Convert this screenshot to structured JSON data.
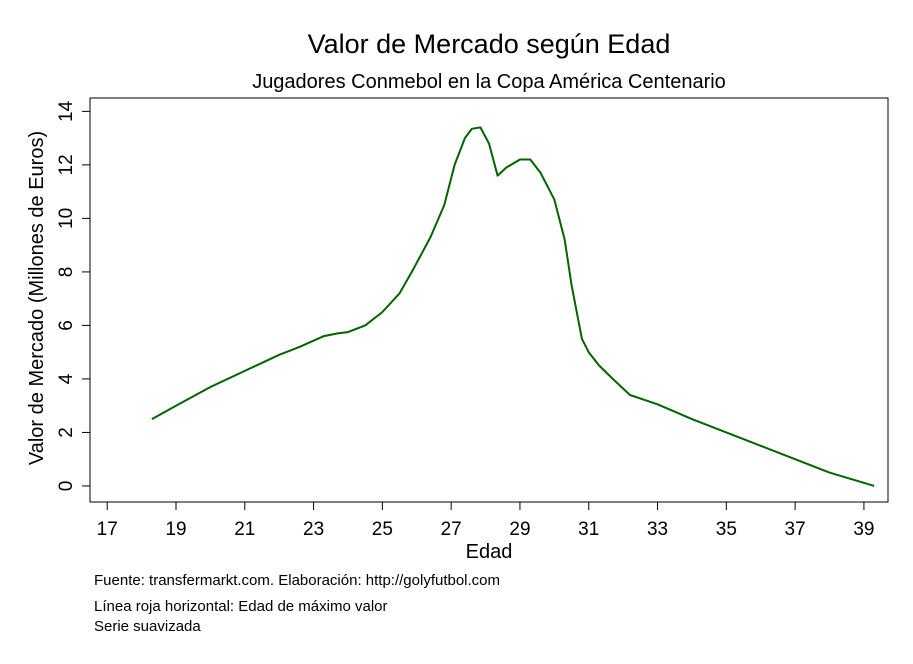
{
  "chart_data": {
    "type": "line",
    "title": "Valor de Mercado según Edad",
    "subtitle": "Jugadores Conmebol en la Copa América Centenario",
    "xlabel": "Edad",
    "ylabel": "Valor de Mercado (Millones de Euros)",
    "xlim": [
      16.5,
      39.7
    ],
    "ylim": [
      -0.6,
      14.5
    ],
    "xticks": [
      "17",
      "19",
      "21",
      "23",
      "25",
      "27",
      "29",
      "31",
      "33",
      "35",
      "37",
      "39"
    ],
    "yticks": [
      "0",
      "2",
      "4",
      "6",
      "8",
      "10",
      "12",
      "14"
    ],
    "grid": false,
    "legend": "none",
    "series": [
      {
        "color": "#006400",
        "x": [
          18.3,
          19.0,
          20.0,
          21.0,
          22.0,
          22.6,
          23.3,
          23.7,
          24.0,
          24.5,
          25.0,
          25.5,
          25.9,
          26.4,
          26.8,
          27.1,
          27.4,
          27.6,
          27.85,
          28.1,
          28.35,
          28.6,
          29.0,
          29.3,
          29.6,
          30.0,
          30.3,
          30.5,
          30.8,
          31.0,
          31.3,
          31.7,
          32.2,
          33.0,
          34.0,
          35.0,
          36.0,
          37.0,
          38.0,
          39.3
        ],
        "y": [
          2.5,
          3.0,
          3.7,
          4.3,
          4.9,
          5.2,
          5.6,
          5.7,
          5.75,
          6.0,
          6.5,
          7.2,
          8.1,
          9.3,
          10.5,
          12.0,
          13.0,
          13.35,
          13.4,
          12.8,
          11.6,
          11.9,
          12.2,
          12.2,
          11.7,
          10.7,
          9.2,
          7.5,
          5.5,
          5.0,
          4.5,
          4.0,
          3.4,
          3.05,
          2.5,
          2.0,
          1.5,
          1.0,
          0.5,
          0.0
        ]
      }
    ]
  },
  "footnotes": {
    "source": "Fuente: transfermarkt.com. Elaboración: http://golyfutbol.com",
    "note1": "Línea roja horizontal: Edad de máximo valor",
    "note2": "Serie suavizada"
  }
}
